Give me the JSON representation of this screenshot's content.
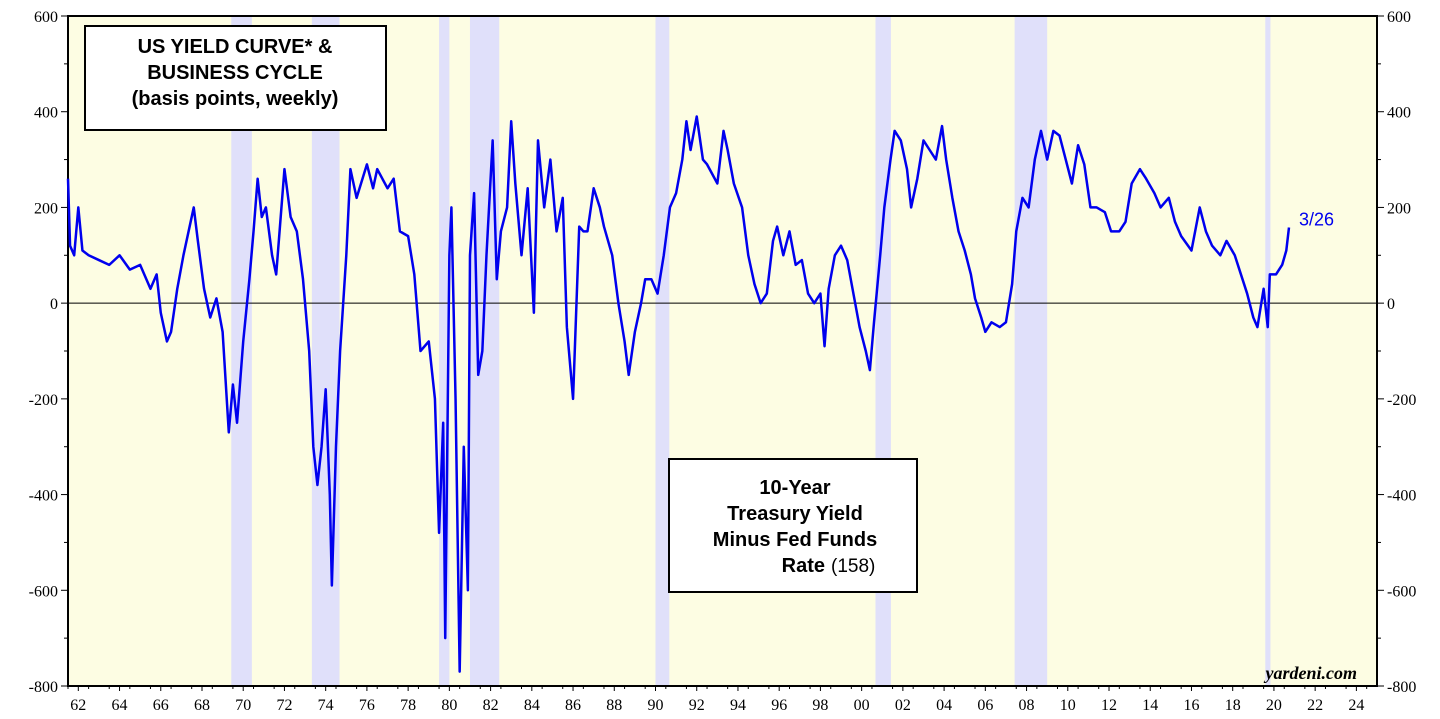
{
  "chart_data": {
    "type": "line",
    "title": [
      "US YIELD CURVE* &",
      "BUSINESS CYCLE",
      "(basis points, weekly)"
    ],
    "annotation": [
      "10-Year",
      "Treasury Yield",
      "Minus Fed Funds",
      "Rate"
    ],
    "annotation_value": "(158)",
    "end_label": "3/26",
    "credit": "yardeni.com",
    "xlim": [
      1962,
      2025.5
    ],
    "xticks": [
      {
        "value": 1962.5,
        "label": "62"
      },
      {
        "value": 1964.5,
        "label": "64"
      },
      {
        "value": 1966.5,
        "label": "66"
      },
      {
        "value": 1968.5,
        "label": "68"
      },
      {
        "value": 1970.5,
        "label": "70"
      },
      {
        "value": 1972.5,
        "label": "72"
      },
      {
        "value": 1974.5,
        "label": "74"
      },
      {
        "value": 1976.5,
        "label": "76"
      },
      {
        "value": 1978.5,
        "label": "78"
      },
      {
        "value": 1980.5,
        "label": "80"
      },
      {
        "value": 1982.5,
        "label": "82"
      },
      {
        "value": 1984.5,
        "label": "84"
      },
      {
        "value": 1986.5,
        "label": "86"
      },
      {
        "value": 1988.5,
        "label": "88"
      },
      {
        "value": 1990.5,
        "label": "90"
      },
      {
        "value": 1992.5,
        "label": "92"
      },
      {
        "value": 1994.5,
        "label": "94"
      },
      {
        "value": 1996.5,
        "label": "96"
      },
      {
        "value": 1998.5,
        "label": "98"
      },
      {
        "value": 2000.5,
        "label": "00"
      },
      {
        "value": 2002.5,
        "label": "02"
      },
      {
        "value": 2004.5,
        "label": "04"
      },
      {
        "value": 2006.5,
        "label": "06"
      },
      {
        "value": 2008.5,
        "label": "08"
      },
      {
        "value": 2010.5,
        "label": "10"
      },
      {
        "value": 2012.5,
        "label": "12"
      },
      {
        "value": 2014.5,
        "label": "14"
      },
      {
        "value": 2016.5,
        "label": "16"
      },
      {
        "value": 2018.5,
        "label": "18"
      },
      {
        "value": 2020.5,
        "label": "20"
      },
      {
        "value": 2022.5,
        "label": "22"
      },
      {
        "value": 2024.5,
        "label": "24"
      }
    ],
    "ylim": [
      -800,
      600
    ],
    "yticks": [
      600,
      400,
      200,
      0,
      -200,
      -400,
      -600,
      -800
    ],
    "reference_line": 0,
    "recessions": [
      [
        1969.92,
        1970.92
      ],
      [
        1973.83,
        1975.17
      ],
      [
        1980.0,
        1980.5
      ],
      [
        1981.5,
        1982.92
      ],
      [
        1990.5,
        1991.17
      ],
      [
        2001.17,
        2001.92
      ],
      [
        2007.92,
        2009.5
      ],
      [
        2020.08,
        2020.33
      ]
    ],
    "recession_color": "#e0e0fa",
    "background_color": "#fdfde3",
    "x": [
      1962.0,
      1962.1,
      1962.3,
      1962.5,
      1962.7,
      1963,
      1963.5,
      1964,
      1964.5,
      1965,
      1965.5,
      1966,
      1966.3,
      1966.5,
      1966.8,
      1967,
      1967.3,
      1967.6,
      1967.9,
      1968.1,
      1968.3,
      1968.6,
      1968.9,
      1969.2,
      1969.5,
      1969.8,
      1970,
      1970.2,
      1970.5,
      1970.8,
      1971,
      1971.2,
      1971.4,
      1971.6,
      1971.9,
      1972.1,
      1972.5,
      1972.8,
      1973.1,
      1973.4,
      1973.7,
      1973.9,
      1974.1,
      1974.3,
      1974.5,
      1974.7,
      1974.8,
      1975.0,
      1975.2,
      1975.5,
      1975.7,
      1976,
      1976.5,
      1976.8,
      1977,
      1977.5,
      1977.8,
      1978.1,
      1978.5,
      1978.8,
      1979.1,
      1979.5,
      1979.8,
      1980.0,
      1980.2,
      1980.3,
      1980.5,
      1980.6,
      1980.8,
      1981.0,
      1981.2,
      1981.4,
      1981.5,
      1981.7,
      1981.9,
      1982.1,
      1982.3,
      1982.6,
      1982.8,
      1983,
      1983.3,
      1983.5,
      1983.7,
      1984,
      1984.3,
      1984.6,
      1984.8,
      1985.1,
      1985.4,
      1985.7,
      1986,
      1986.2,
      1986.5,
      1986.8,
      1987,
      1987.2,
      1987.5,
      1987.8,
      1988,
      1988.4,
      1988.7,
      1989,
      1989.2,
      1989.5,
      1989.8,
      1990,
      1990.3,
      1990.6,
      1990.9,
      1991.2,
      1991.5,
      1991.8,
      1992,
      1992.2,
      1992.5,
      1992.8,
      1993,
      1993.5,
      1993.8,
      1994,
      1994.3,
      1994.7,
      1995,
      1995.3,
      1995.6,
      1995.9,
      1996.2,
      1996.4,
      1996.7,
      1997,
      1997.3,
      1997.6,
      1997.9,
      1998.2,
      1998.5,
      1998.7,
      1998.9,
      1999.2,
      1999.5,
      1999.8,
      2000.1,
      2000.4,
      2000.7,
      2000.9,
      2001.1,
      2001.4,
      2001.6,
      2001.9,
      2002.1,
      2002.4,
      2002.7,
      2002.9,
      2003.2,
      2003.5,
      2003.8,
      2004.1,
      2004.4,
      2004.6,
      2004.9,
      2005.2,
      2005.5,
      2005.8,
      2006.0,
      2006.3,
      2006.5,
      2006.8,
      2007.2,
      2007.5,
      2007.8,
      2008.0,
      2008.3,
      2008.6,
      2008.9,
      2009.2,
      2009.5,
      2009.8,
      2010.1,
      2010.4,
      2010.7,
      2011,
      2011.3,
      2011.6,
      2011.9,
      2012.3,
      2012.6,
      2013,
      2013.3,
      2013.6,
      2014,
      2014.3,
      2014.7,
      2015,
      2015.4,
      2015.7,
      2016,
      2016.5,
      2016.9,
      2017.2,
      2017.5,
      2017.9,
      2018.2,
      2018.6,
      2018.9,
      2019.2,
      2019.5,
      2019.7,
      2020.0,
      2020.2,
      2020.3,
      2020.6,
      2020.9,
      2021.1,
      2021.23
    ],
    "series": [
      {
        "name": "10-Year Treasury Yield Minus Fed Funds Rate",
        "color": "#0000ee",
        "values": [
          260,
          120,
          100,
          200,
          110,
          100,
          90,
          80,
          100,
          70,
          80,
          30,
          60,
          -20,
          -80,
          -60,
          30,
          100,
          160,
          200,
          130,
          30,
          -30,
          10,
          -60,
          -270,
          -170,
          -250,
          -80,
          50,
          150,
          260,
          180,
          200,
          100,
          60,
          280,
          180,
          150,
          50,
          -100,
          -300,
          -380,
          -300,
          -180,
          -400,
          -590,
          -300,
          -100,
          100,
          280,
          220,
          290,
          240,
          280,
          240,
          260,
          150,
          140,
          60,
          -100,
          -80,
          -200,
          -480,
          -250,
          -700,
          100,
          200,
          -200,
          -770,
          -300,
          -600,
          100,
          230,
          -150,
          -100,
          100,
          340,
          50,
          150,
          200,
          380,
          250,
          100,
          240,
          -20,
          340,
          200,
          300,
          150,
          220,
          -50,
          -200,
          160,
          150,
          150,
          240,
          200,
          160,
          100,
          0,
          -80,
          -150,
          -60,
          0,
          50,
          50,
          20,
          100,
          200,
          230,
          300,
          380,
          320,
          390,
          300,
          290,
          250,
          360,
          320,
          250,
          200,
          100,
          40,
          0,
          20,
          130,
          160,
          100,
          150,
          80,
          90,
          20,
          0,
          20,
          -90,
          30,
          100,
          120,
          90,
          20,
          -50,
          -100,
          -140,
          -40,
          100,
          200,
          300,
          360,
          340,
          280,
          200,
          260,
          340,
          320,
          300,
          370,
          300,
          220,
          150,
          110,
          60,
          10,
          -30,
          -60,
          -40,
          -50,
          -40,
          40,
          150,
          220,
          200,
          300,
          360,
          300,
          360,
          350,
          300,
          250,
          330,
          290,
          200,
          200,
          190,
          150,
          150,
          170,
          250,
          280,
          260,
          230,
          200,
          220,
          170,
          140,
          110,
          200,
          150,
          120,
          100,
          130,
          100,
          60,
          20,
          -30,
          -50,
          30,
          -50,
          60,
          60,
          80,
          110,
          158
        ]
      }
    ]
  }
}
